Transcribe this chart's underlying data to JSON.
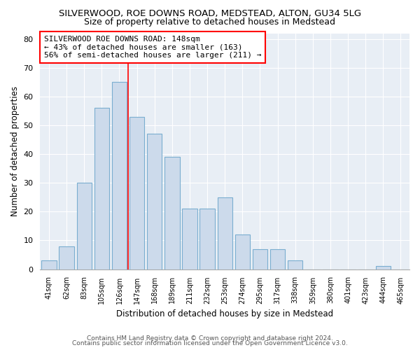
{
  "title1": "SILVERWOOD, ROE DOWNS ROAD, MEDSTEAD, ALTON, GU34 5LG",
  "title2": "Size of property relative to detached houses in Medstead",
  "xlabel": "Distribution of detached houses by size in Medstead",
  "ylabel": "Number of detached properties",
  "bins": [
    "41sqm",
    "62sqm",
    "83sqm",
    "105sqm",
    "126sqm",
    "147sqm",
    "168sqm",
    "189sqm",
    "211sqm",
    "232sqm",
    "253sqm",
    "274sqm",
    "295sqm",
    "317sqm",
    "338sqm",
    "359sqm",
    "380sqm",
    "401sqm",
    "423sqm",
    "444sqm",
    "465sqm"
  ],
  "values": [
    3,
    8,
    30,
    56,
    65,
    53,
    47,
    39,
    21,
    21,
    25,
    12,
    7,
    7,
    3,
    0,
    0,
    0,
    0,
    1,
    0
  ],
  "bar_color": "#ccdaeb",
  "bar_edge_color": "#7aaed0",
  "red_line_x": 5,
  "annotation_text": "SILVERWOOD ROE DOWNS ROAD: 148sqm\n← 43% of detached houses are smaller (163)\n56% of semi-detached houses are larger (211) →",
  "ylim": [
    0,
    82
  ],
  "yticks": [
    0,
    10,
    20,
    30,
    40,
    50,
    60,
    70,
    80
  ],
  "footer1": "Contains HM Land Registry data © Crown copyright and database right 2024.",
  "footer2": "Contains public sector information licensed under the Open Government Licence v3.0.",
  "fig_background": "#ffffff",
  "plot_background": "#e8eef5",
  "grid_color": "#ffffff",
  "title1_fontsize": 9.5,
  "title2_fontsize": 9,
  "annot_fontsize": 8,
  "footer_fontsize": 6.5,
  "bar_width": 0.85
}
